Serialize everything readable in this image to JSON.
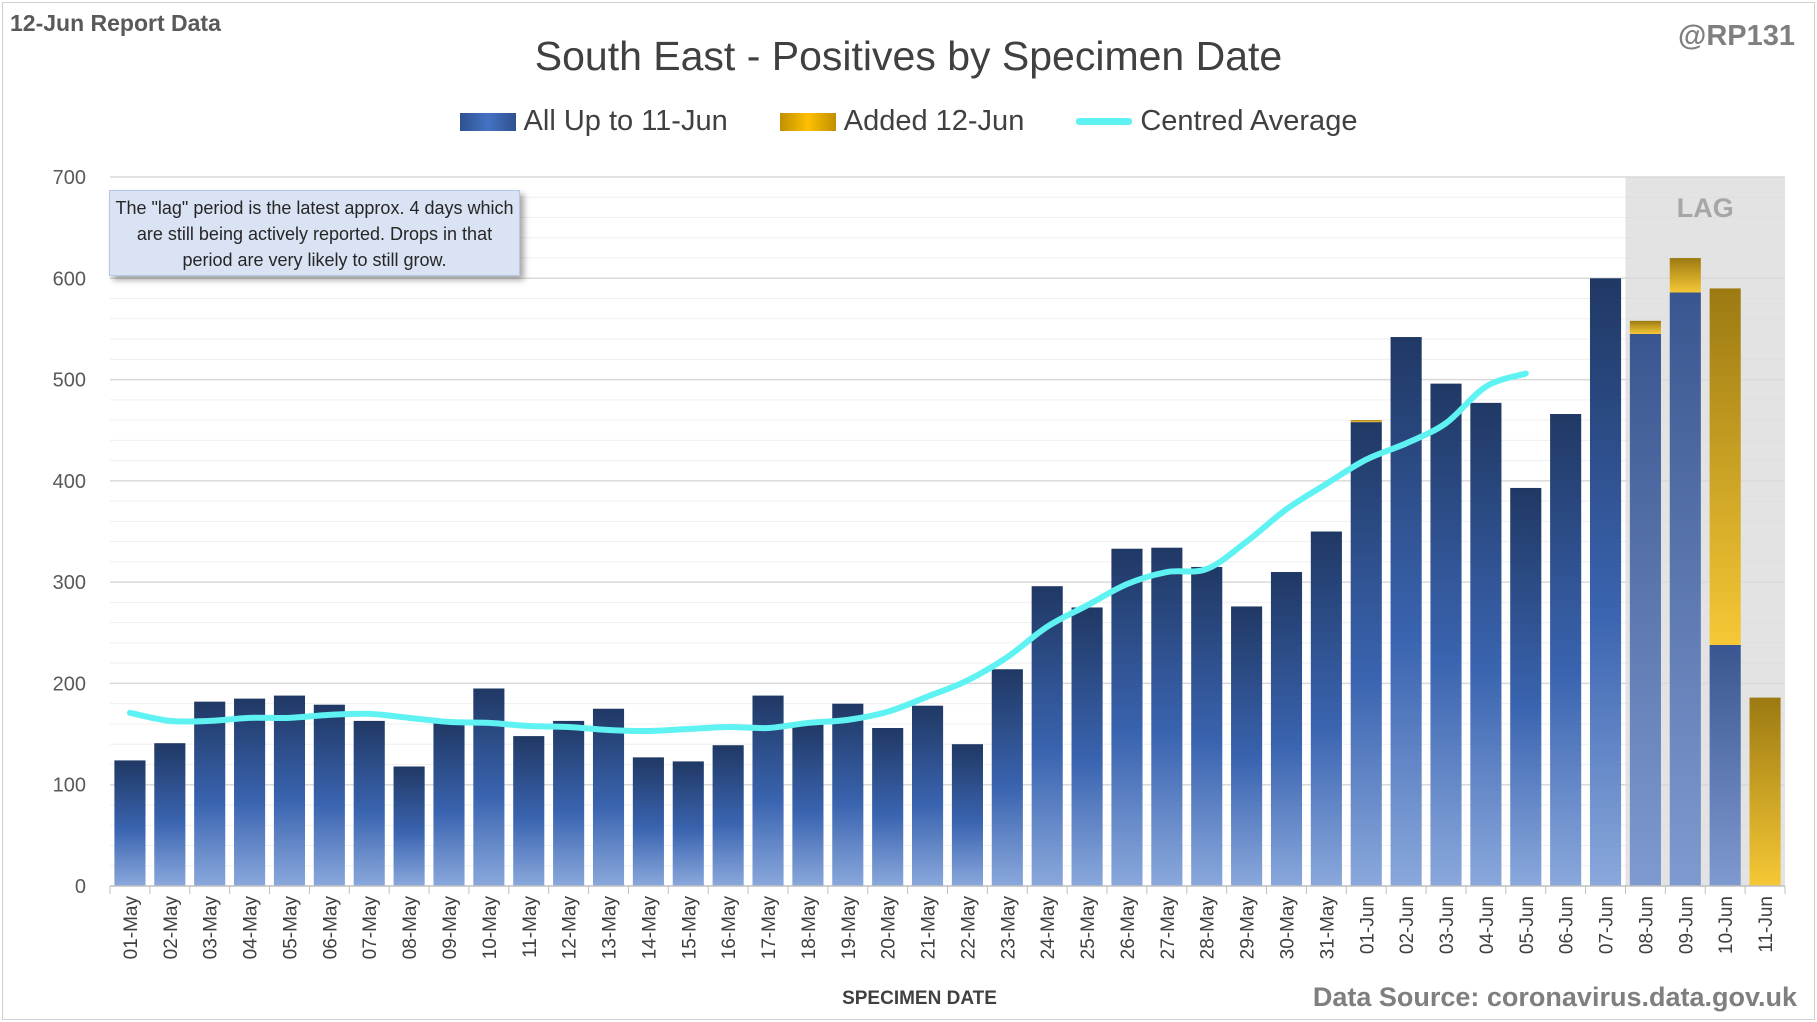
{
  "report_label": "12-Jun Report Data",
  "handle": "@RP131",
  "source": "Data Source: coronavirus.data.gov.uk",
  "annotation": "The \"lag\" period is the latest approx. 4 days which are still being actively reported. Drops in that period are very likely to still grow.",
  "lag_label": "LAG",
  "colors": {
    "blue": "#4472c4",
    "gold": "#ffc000",
    "average": "#5ff2f2",
    "lag_shade": "#d9d9d9"
  },
  "chart_data": {
    "type": "bar",
    "title": "South East - Positives by Specimen Date",
    "xlabel": "SPECIMEN DATE",
    "ylabel": "",
    "ylim": [
      0,
      700
    ],
    "yticks": [
      0,
      100,
      200,
      300,
      400,
      500,
      600,
      700
    ],
    "grid": true,
    "stacked": true,
    "legend_position": "top",
    "categories": [
      "01-May",
      "02-May",
      "03-May",
      "04-May",
      "05-May",
      "06-May",
      "07-May",
      "08-May",
      "09-May",
      "10-May",
      "11-May",
      "12-May",
      "13-May",
      "14-May",
      "15-May",
      "16-May",
      "17-May",
      "18-May",
      "19-May",
      "20-May",
      "21-May",
      "22-May",
      "23-May",
      "24-May",
      "25-May",
      "26-May",
      "27-May",
      "28-May",
      "29-May",
      "30-May",
      "31-May",
      "01-Jun",
      "02-Jun",
      "03-Jun",
      "04-Jun",
      "05-Jun",
      "06-Jun",
      "07-Jun",
      "08-Jun",
      "09-Jun",
      "10-Jun",
      "11-Jun"
    ],
    "lag_categories": [
      "08-Jun",
      "09-Jun",
      "10-Jun",
      "11-Jun"
    ],
    "series": [
      {
        "name": "All Up to 11-Jun",
        "type": "bar",
        "values": [
          124,
          141,
          182,
          185,
          188,
          179,
          163,
          118,
          161,
          195,
          148,
          163,
          175,
          127,
          123,
          139,
          188,
          161,
          180,
          156,
          178,
          140,
          214,
          296,
          275,
          333,
          334,
          315,
          276,
          310,
          350,
          458,
          542,
          496,
          477,
          393,
          466,
          600,
          545,
          586,
          238,
          0
        ]
      },
      {
        "name": "Added 12-Jun",
        "type": "bar",
        "values": [
          0,
          0,
          0,
          0,
          0,
          0,
          0,
          0,
          0,
          0,
          0,
          0,
          0,
          0,
          0,
          0,
          0,
          0,
          0,
          0,
          0,
          0,
          0,
          0,
          0,
          0,
          0,
          0,
          0,
          0,
          0,
          2,
          0,
          0,
          0,
          0,
          0,
          0,
          13,
          34,
          352,
          186
        ]
      },
      {
        "name": "Centred Average",
        "type": "line",
        "values": [
          171,
          163,
          163,
          166,
          166,
          169,
          170,
          166,
          162,
          161,
          158,
          157,
          154,
          153,
          155,
          157,
          156,
          161,
          164,
          172,
          187,
          203,
          226,
          256,
          277,
          298,
          310,
          313,
          340,
          372,
          397,
          421,
          437,
          457,
          493,
          506,
          null,
          null,
          null,
          null,
          null,
          null
        ]
      }
    ]
  }
}
